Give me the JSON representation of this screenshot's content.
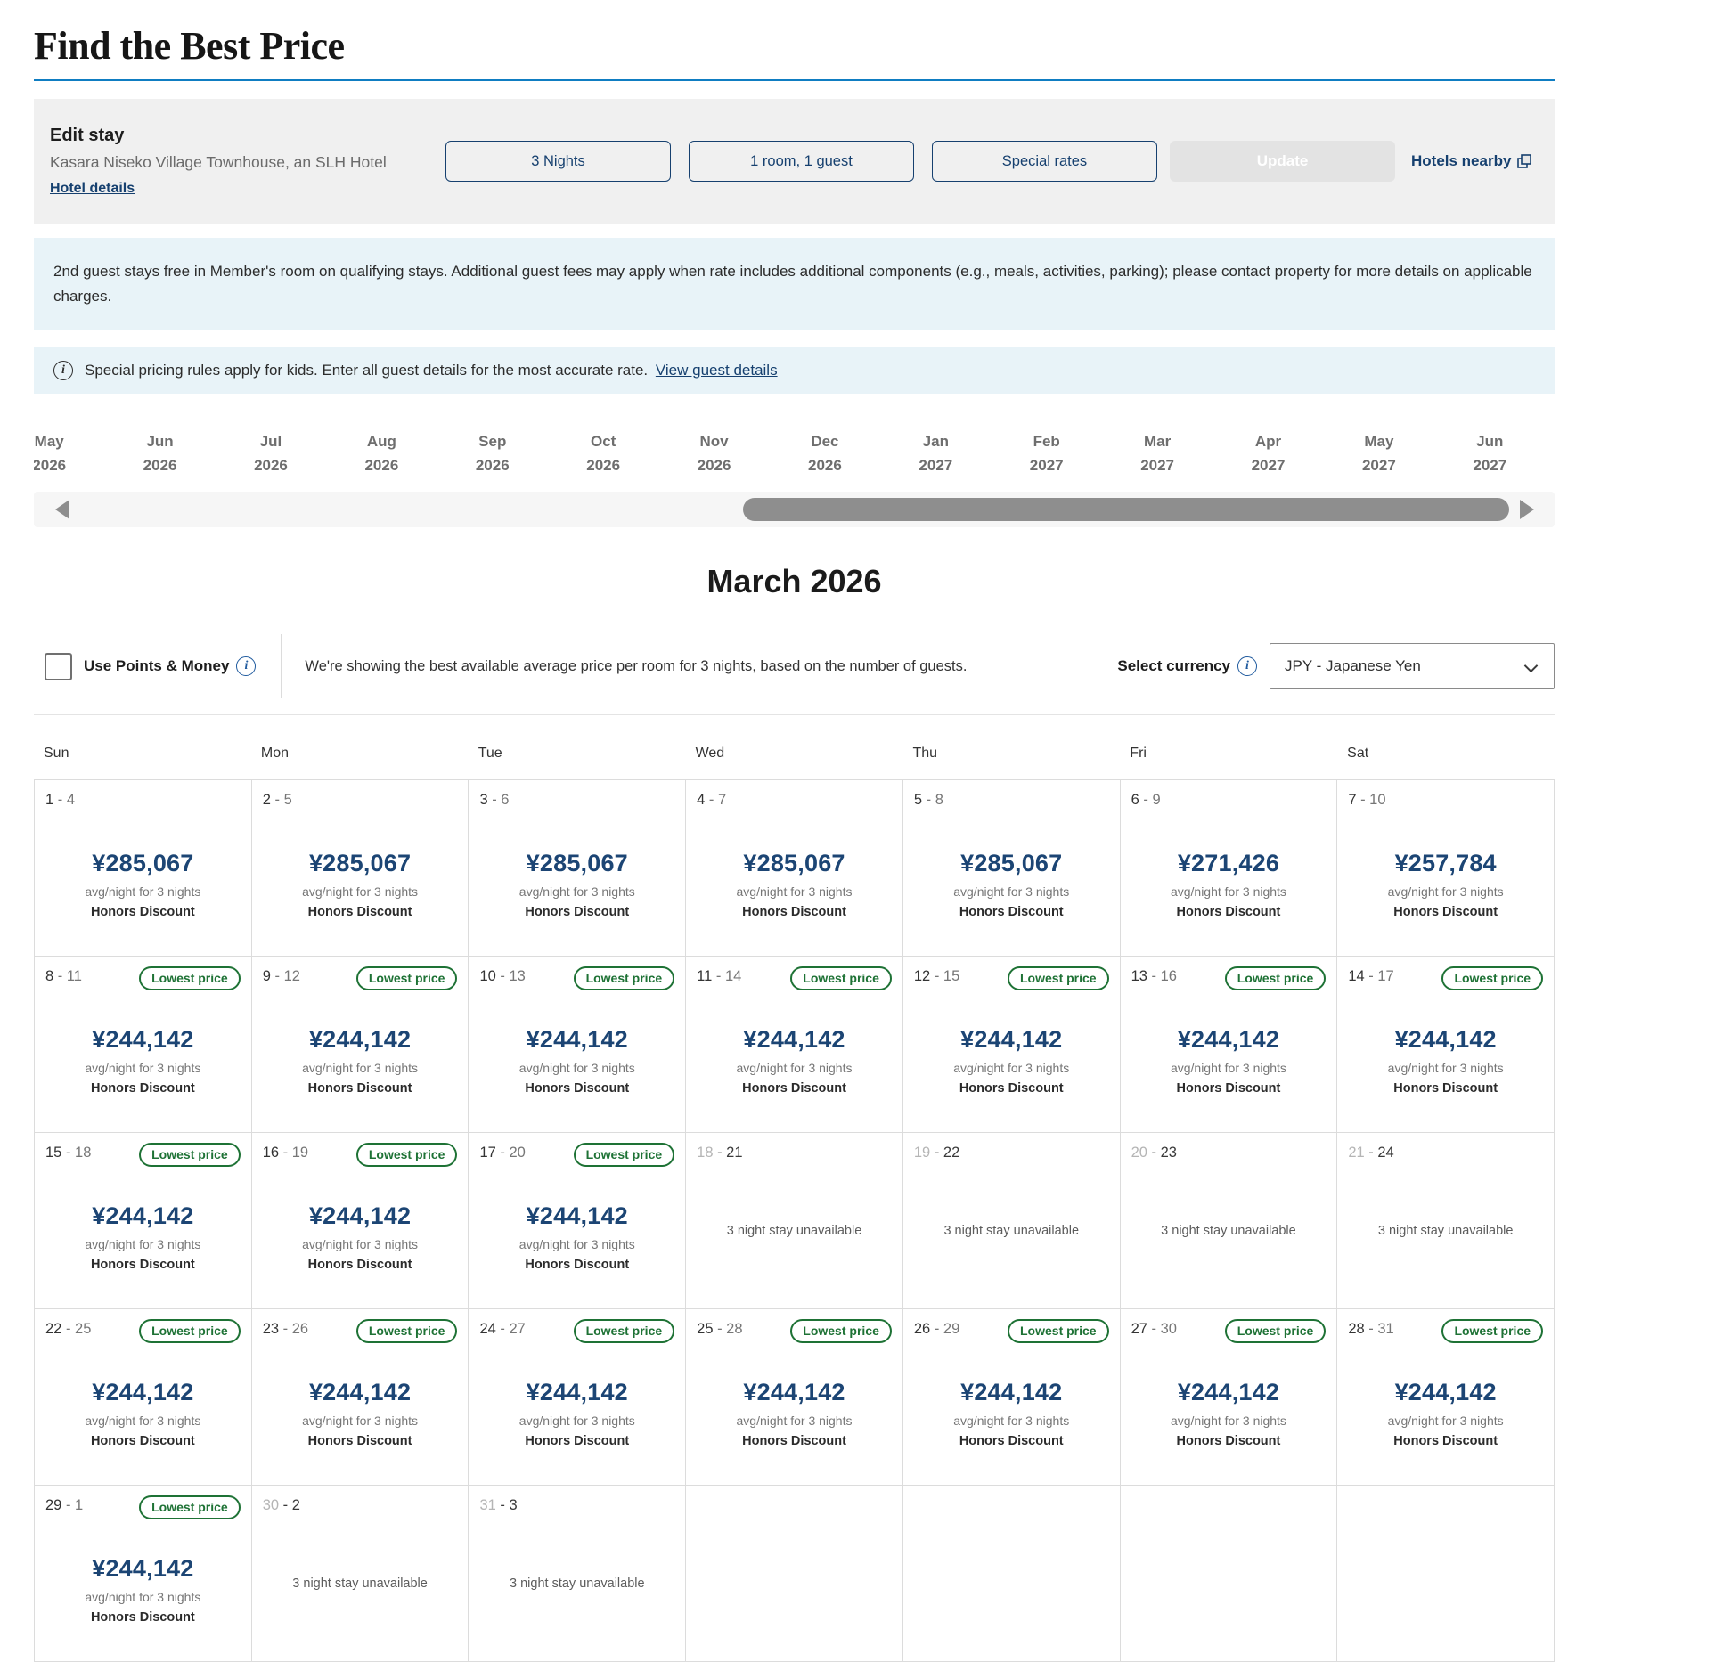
{
  "page": {
    "title": "Find the Best Price"
  },
  "edit_stay": {
    "heading": "Edit stay",
    "hotel_name": "Kasara Niseko Village Townhouse, an SLH Hotel",
    "hotel_details_link": "Hotel details",
    "nights_button": "3 Nights",
    "occupancy_button": "1 room, 1 guest",
    "special_rates_button": "Special rates",
    "update_button": "Update",
    "hotels_nearby_link": "Hotels nearby"
  },
  "banners": {
    "promo": "2nd guest stays free in Member's room on qualifying stays. Additional guest fees may apply when rate includes additional components (e.g., meals, activities, parking); please contact property for more details on applicable charges.",
    "kids_notice": "Special pricing rules apply for kids. Enter all guest details for the most accurate rate.",
    "kids_link": "View guest details"
  },
  "month_nav": {
    "months": [
      {
        "month": "May",
        "year": "2026"
      },
      {
        "month": "Jun",
        "year": "2026"
      },
      {
        "month": "Jul",
        "year": "2026"
      },
      {
        "month": "Aug",
        "year": "2026"
      },
      {
        "month": "Sep",
        "year": "2026"
      },
      {
        "month": "Oct",
        "year": "2026"
      },
      {
        "month": "Nov",
        "year": "2026"
      },
      {
        "month": "Dec",
        "year": "2026"
      },
      {
        "month": "Jan",
        "year": "2027"
      },
      {
        "month": "Feb",
        "year": "2027"
      },
      {
        "month": "Mar",
        "year": "2027"
      },
      {
        "month": "Apr",
        "year": "2027"
      },
      {
        "month": "May",
        "year": "2027"
      },
      {
        "month": "Jun",
        "year": "2027"
      }
    ]
  },
  "calendar": {
    "month_title": "March 2026",
    "points_toggle_label": "Use Points & Money",
    "description": "We're showing the best available average price per room for 3 nights, based on the number of guests.",
    "currency_label": "Select currency",
    "currency_value": "JPY - Japanese Yen",
    "day_headers": [
      "Sun",
      "Mon",
      "Tue",
      "Wed",
      "Thu",
      "Fri",
      "Sat"
    ],
    "price_suffix": "avg/night for 3 nights",
    "rate_name": "Honors Discount",
    "lowest_badge": "Lowest price",
    "unavailable_text": "3 night stay unavailable",
    "weeks": [
      [
        {
          "state": "available",
          "start": "1",
          "end": "4",
          "price": "¥285,067",
          "badge": false
        },
        {
          "state": "available",
          "start": "2",
          "end": "5",
          "price": "¥285,067",
          "badge": false
        },
        {
          "state": "available",
          "start": "3",
          "end": "6",
          "price": "¥285,067",
          "badge": false
        },
        {
          "state": "available",
          "start": "4",
          "end": "7",
          "price": "¥285,067",
          "badge": false
        },
        {
          "state": "available",
          "start": "5",
          "end": "8",
          "price": "¥285,067",
          "badge": false
        },
        {
          "state": "available",
          "start": "6",
          "end": "9",
          "price": "¥271,426",
          "badge": false
        },
        {
          "state": "available",
          "start": "7",
          "end": "10",
          "price": "¥257,784",
          "badge": false
        }
      ],
      [
        {
          "state": "available",
          "start": "8",
          "end": "11",
          "price": "¥244,142",
          "badge": true
        },
        {
          "state": "available",
          "start": "9",
          "end": "12",
          "price": "¥244,142",
          "badge": true
        },
        {
          "state": "available",
          "start": "10",
          "end": "13",
          "price": "¥244,142",
          "badge": true
        },
        {
          "state": "available",
          "start": "11",
          "end": "14",
          "price": "¥244,142",
          "badge": true
        },
        {
          "state": "available",
          "start": "12",
          "end": "15",
          "price": "¥244,142",
          "badge": true
        },
        {
          "state": "available",
          "start": "13",
          "end": "16",
          "price": "¥244,142",
          "badge": true
        },
        {
          "state": "available",
          "start": "14",
          "end": "17",
          "price": "¥244,142",
          "badge": true
        }
      ],
      [
        {
          "state": "available",
          "start": "15",
          "end": "18",
          "price": "¥244,142",
          "badge": true
        },
        {
          "state": "available",
          "start": "16",
          "end": "19",
          "price": "¥244,142",
          "badge": true
        },
        {
          "state": "available",
          "start": "17",
          "end": "20",
          "price": "¥244,142",
          "badge": true
        },
        {
          "state": "unavailable",
          "start": "18",
          "end": "21",
          "price": "",
          "badge": false
        },
        {
          "state": "unavailable",
          "start": "19",
          "end": "22",
          "price": "",
          "badge": false
        },
        {
          "state": "unavailable",
          "start": "20",
          "end": "23",
          "price": "",
          "badge": false
        },
        {
          "state": "unavailable",
          "start": "21",
          "end": "24",
          "price": "",
          "badge": false
        }
      ],
      [
        {
          "state": "available",
          "start": "22",
          "end": "25",
          "price": "¥244,142",
          "badge": true
        },
        {
          "state": "available",
          "start": "23",
          "end": "26",
          "price": "¥244,142",
          "badge": true
        },
        {
          "state": "available",
          "start": "24",
          "end": "27",
          "price": "¥244,142",
          "badge": true
        },
        {
          "state": "available",
          "start": "25",
          "end": "28",
          "price": "¥244,142",
          "badge": true
        },
        {
          "state": "available",
          "start": "26",
          "end": "29",
          "price": "¥244,142",
          "badge": true
        },
        {
          "state": "available",
          "start": "27",
          "end": "30",
          "price": "¥244,142",
          "badge": true
        },
        {
          "state": "available",
          "start": "28",
          "end": "31",
          "price": "¥244,142",
          "badge": true
        }
      ],
      [
        {
          "state": "available",
          "start": "29",
          "end": "1",
          "price": "¥244,142",
          "badge": true
        },
        {
          "state": "unavailable",
          "start": "30",
          "end": "2",
          "price": "",
          "badge": false
        },
        {
          "state": "unavailable",
          "start": "31",
          "end": "3",
          "price": "",
          "badge": false
        },
        {
          "state": "empty"
        },
        {
          "state": "empty"
        },
        {
          "state": "empty"
        },
        {
          "state": "empty"
        }
      ]
    ]
  },
  "colors": {
    "accent_blue_rule": "#0f7dc2",
    "navy": "#16406f",
    "price_navy": "#1c4574",
    "badge_green": "#1e7235",
    "banner_bg": "#e8f3f8",
    "panel_bg": "#f0f0f0",
    "disabled_bg": "#e3e3e3"
  }
}
